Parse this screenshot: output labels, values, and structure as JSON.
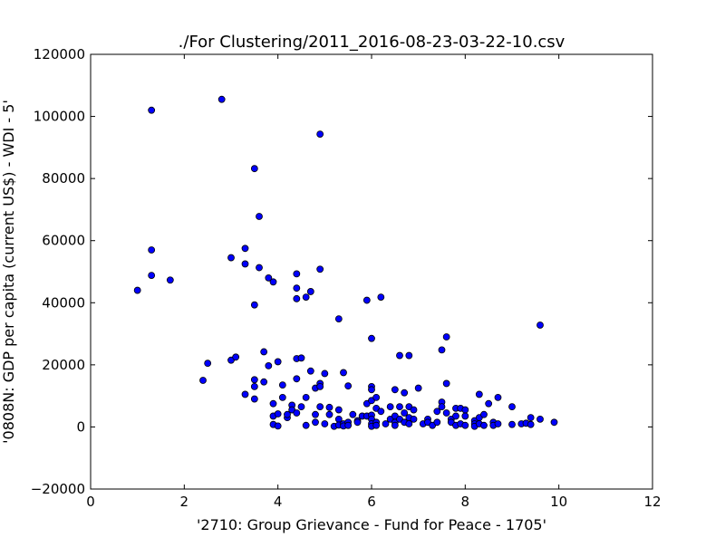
{
  "chart_data": {
    "type": "scatter",
    "title": "./For Clustering/2011_2016-08-23-03-22-10.csv",
    "xlabel": "'2710: Group Grievance - Fund for Peace - 1705'",
    "ylabel": "'0808N: GDP per capita  (current US$) - WDI - 5'",
    "xlim": [
      0,
      12
    ],
    "ylim": [
      -20000,
      120000
    ],
    "xticks": [
      0,
      2,
      4,
      6,
      8,
      10,
      12
    ],
    "yticks": [
      -20000,
      0,
      20000,
      40000,
      60000,
      80000,
      100000,
      120000
    ],
    "grid": false,
    "marker_color": "#0000ff",
    "marker_edge_color": "#000000",
    "points": [
      {
        "x": 1.0,
        "y": 44000
      },
      {
        "x": 1.3,
        "y": 102000
      },
      {
        "x": 1.3,
        "y": 57000
      },
      {
        "x": 1.3,
        "y": 48800
      },
      {
        "x": 1.7,
        "y": 47300
      },
      {
        "x": 2.4,
        "y": 15000
      },
      {
        "x": 2.5,
        "y": 20500
      },
      {
        "x": 2.8,
        "y": 105500
      },
      {
        "x": 3.0,
        "y": 54500
      },
      {
        "x": 3.0,
        "y": 21500
      },
      {
        "x": 3.1,
        "y": 22500
      },
      {
        "x": 3.3,
        "y": 57500
      },
      {
        "x": 3.3,
        "y": 52500
      },
      {
        "x": 3.3,
        "y": 10500
      },
      {
        "x": 3.5,
        "y": 83200
      },
      {
        "x": 3.5,
        "y": 39300
      },
      {
        "x": 3.5,
        "y": 15200
      },
      {
        "x": 3.5,
        "y": 13000
      },
      {
        "x": 3.5,
        "y": 9000
      },
      {
        "x": 3.6,
        "y": 67800
      },
      {
        "x": 3.6,
        "y": 51300
      },
      {
        "x": 3.7,
        "y": 24200
      },
      {
        "x": 3.7,
        "y": 14500
      },
      {
        "x": 3.8,
        "y": 48000
      },
      {
        "x": 3.8,
        "y": 19700
      },
      {
        "x": 3.9,
        "y": 46700
      },
      {
        "x": 3.9,
        "y": 7500
      },
      {
        "x": 3.9,
        "y": 3500
      },
      {
        "x": 3.9,
        "y": 800
      },
      {
        "x": 4.0,
        "y": 21000
      },
      {
        "x": 4.0,
        "y": 4200
      },
      {
        "x": 4.0,
        "y": 300
      },
      {
        "x": 4.1,
        "y": 13500
      },
      {
        "x": 4.1,
        "y": 9500
      },
      {
        "x": 4.2,
        "y": 3000
      },
      {
        "x": 4.2,
        "y": 4000
      },
      {
        "x": 4.3,
        "y": 7000
      },
      {
        "x": 4.3,
        "y": 5500
      },
      {
        "x": 4.4,
        "y": 49300
      },
      {
        "x": 4.4,
        "y": 44700
      },
      {
        "x": 4.4,
        "y": 41300
      },
      {
        "x": 4.4,
        "y": 22000
      },
      {
        "x": 4.4,
        "y": 15500
      },
      {
        "x": 4.4,
        "y": 4500
      },
      {
        "x": 4.5,
        "y": 22200
      },
      {
        "x": 4.5,
        "y": 6500
      },
      {
        "x": 4.6,
        "y": 41800
      },
      {
        "x": 4.6,
        "y": 9500
      },
      {
        "x": 4.6,
        "y": 500
      },
      {
        "x": 4.7,
        "y": 43600
      },
      {
        "x": 4.7,
        "y": 18000
      },
      {
        "x": 4.8,
        "y": 12500
      },
      {
        "x": 4.8,
        "y": 4000
      },
      {
        "x": 4.8,
        "y": 1500
      },
      {
        "x": 4.9,
        "y": 94300
      },
      {
        "x": 4.9,
        "y": 50800
      },
      {
        "x": 4.9,
        "y": 14000
      },
      {
        "x": 4.9,
        "y": 13000
      },
      {
        "x": 4.9,
        "y": 6500
      },
      {
        "x": 5.0,
        "y": 17200
      },
      {
        "x": 5.0,
        "y": 1000
      },
      {
        "x": 5.1,
        "y": 6300
      },
      {
        "x": 5.1,
        "y": 4000
      },
      {
        "x": 5.2,
        "y": 200
      },
      {
        "x": 5.3,
        "y": 34800
      },
      {
        "x": 5.3,
        "y": 5500
      },
      {
        "x": 5.3,
        "y": 2500
      },
      {
        "x": 5.3,
        "y": 600
      },
      {
        "x": 5.4,
        "y": 17500
      },
      {
        "x": 5.4,
        "y": 1000
      },
      {
        "x": 5.4,
        "y": 300
      },
      {
        "x": 5.5,
        "y": 13200
      },
      {
        "x": 5.5,
        "y": 1500
      },
      {
        "x": 5.5,
        "y": 500
      },
      {
        "x": 5.6,
        "y": 4000
      },
      {
        "x": 5.7,
        "y": 2000
      },
      {
        "x": 5.7,
        "y": 1500
      },
      {
        "x": 5.8,
        "y": 3500
      },
      {
        "x": 5.9,
        "y": 40800
      },
      {
        "x": 5.9,
        "y": 7500
      },
      {
        "x": 5.9,
        "y": 3500
      },
      {
        "x": 6.0,
        "y": 28500
      },
      {
        "x": 6.0,
        "y": 13000
      },
      {
        "x": 6.0,
        "y": 12000
      },
      {
        "x": 6.0,
        "y": 8500
      },
      {
        "x": 6.0,
        "y": 3800
      },
      {
        "x": 6.0,
        "y": 2500
      },
      {
        "x": 6.0,
        "y": 1000
      },
      {
        "x": 6.0,
        "y": 200
      },
      {
        "x": 6.1,
        "y": 9500
      },
      {
        "x": 6.1,
        "y": 6000
      },
      {
        "x": 6.1,
        "y": 1500
      },
      {
        "x": 6.1,
        "y": 500
      },
      {
        "x": 6.2,
        "y": 41800
      },
      {
        "x": 6.2,
        "y": 5000
      },
      {
        "x": 6.3,
        "y": 1000
      },
      {
        "x": 6.4,
        "y": 6500
      },
      {
        "x": 6.4,
        "y": 2500
      },
      {
        "x": 6.5,
        "y": 12000
      },
      {
        "x": 6.5,
        "y": 3500
      },
      {
        "x": 6.5,
        "y": 1500
      },
      {
        "x": 6.5,
        "y": 500
      },
      {
        "x": 6.6,
        "y": 23000
      },
      {
        "x": 6.6,
        "y": 6500
      },
      {
        "x": 6.6,
        "y": 2500
      },
      {
        "x": 6.7,
        "y": 11000
      },
      {
        "x": 6.7,
        "y": 4500
      },
      {
        "x": 6.7,
        "y": 1500
      },
      {
        "x": 6.8,
        "y": 23000
      },
      {
        "x": 6.8,
        "y": 6500
      },
      {
        "x": 6.8,
        "y": 3000
      },
      {
        "x": 6.8,
        "y": 1000
      },
      {
        "x": 6.9,
        "y": 5500
      },
      {
        "x": 6.9,
        "y": 2500
      },
      {
        "x": 7.0,
        "y": 12500
      },
      {
        "x": 7.1,
        "y": 1000
      },
      {
        "x": 7.2,
        "y": 2500
      },
      {
        "x": 7.2,
        "y": 1500
      },
      {
        "x": 7.3,
        "y": 500
      },
      {
        "x": 7.4,
        "y": 5000
      },
      {
        "x": 7.4,
        "y": 1500
      },
      {
        "x": 7.5,
        "y": 24800
      },
      {
        "x": 7.5,
        "y": 8000
      },
      {
        "x": 7.5,
        "y": 6500
      },
      {
        "x": 7.6,
        "y": 29000
      },
      {
        "x": 7.6,
        "y": 14000
      },
      {
        "x": 7.6,
        "y": 4500
      },
      {
        "x": 7.7,
        "y": 2500
      },
      {
        "x": 7.7,
        "y": 1500
      },
      {
        "x": 7.8,
        "y": 6000
      },
      {
        "x": 7.8,
        "y": 3500
      },
      {
        "x": 7.8,
        "y": 500
      },
      {
        "x": 7.9,
        "y": 6000
      },
      {
        "x": 7.9,
        "y": 1000
      },
      {
        "x": 8.0,
        "y": 5500
      },
      {
        "x": 8.0,
        "y": 3500
      },
      {
        "x": 8.0,
        "y": 500
      },
      {
        "x": 8.2,
        "y": 2000
      },
      {
        "x": 8.2,
        "y": 1000
      },
      {
        "x": 8.2,
        "y": 200
      },
      {
        "x": 8.3,
        "y": 10500
      },
      {
        "x": 8.3,
        "y": 3000
      },
      {
        "x": 8.3,
        "y": 1000
      },
      {
        "x": 8.4,
        "y": 4000
      },
      {
        "x": 8.4,
        "y": 500
      },
      {
        "x": 8.5,
        "y": 7500
      },
      {
        "x": 8.6,
        "y": 1500
      },
      {
        "x": 8.6,
        "y": 500
      },
      {
        "x": 8.7,
        "y": 9500
      },
      {
        "x": 8.7,
        "y": 1000
      },
      {
        "x": 9.0,
        "y": 6500
      },
      {
        "x": 9.0,
        "y": 800
      },
      {
        "x": 9.2,
        "y": 1000
      },
      {
        "x": 9.3,
        "y": 1200
      },
      {
        "x": 9.4,
        "y": 3000
      },
      {
        "x": 9.4,
        "y": 800
      },
      {
        "x": 9.6,
        "y": 32800
      },
      {
        "x": 9.6,
        "y": 2500
      },
      {
        "x": 9.9,
        "y": 1500
      }
    ]
  }
}
